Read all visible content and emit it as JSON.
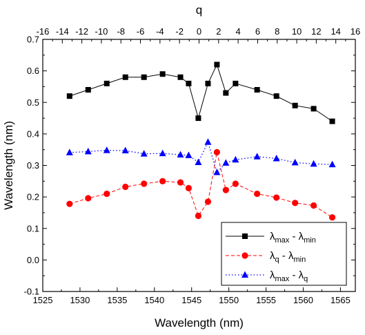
{
  "chart_data": {
    "type": "line",
    "xlabel": "Wavelength (nm)",
    "ylabel": "Wavelength (nm)",
    "x2label": "q",
    "xlim": [
      1525,
      1567
    ],
    "ylim": [
      -0.1,
      0.7
    ],
    "x2lim": [
      -16,
      16
    ],
    "xticks": [
      1525,
      1530,
      1535,
      1540,
      1545,
      1550,
      1555,
      1560,
      1565
    ],
    "yticks": [
      -0.1,
      0.0,
      0.1,
      0.2,
      0.3,
      0.4,
      0.5,
      0.6,
      0.7
    ],
    "x2ticks": [
      -16,
      -14,
      -12,
      -10,
      -8,
      -6,
      -4,
      -2,
      0,
      2,
      4,
      6,
      8,
      10,
      12,
      14,
      16
    ],
    "ytick_labels": [
      "-0.1",
      "0.0",
      "0.1",
      "0.2",
      "0.3",
      "0.4",
      "0.5",
      "0.6",
      "0.7"
    ],
    "grid": false,
    "legend_position": "bottom-right",
    "series": [
      {
        "name": "λmax - λmin",
        "name_base": "λ",
        "name_sub1": "max",
        "name_mid": " - λ",
        "name_sub2": "min",
        "marker": "square",
        "color": "#000000",
        "line": "solid",
        "points": [
          [
            1528.6,
            0.52
          ],
          [
            1531.1,
            0.54
          ],
          [
            1533.6,
            0.56
          ],
          [
            1536.1,
            0.58
          ],
          [
            1538.6,
            0.58
          ],
          [
            1541.1,
            0.59
          ],
          [
            1543.5,
            0.58
          ],
          [
            1544.6,
            0.56
          ],
          [
            1545.9,
            0.45
          ],
          [
            1547.2,
            0.56
          ],
          [
            1548.4,
            0.62
          ],
          [
            1549.6,
            0.53
          ],
          [
            1550.9,
            0.56
          ],
          [
            1553.8,
            0.54
          ],
          [
            1556.4,
            0.52
          ],
          [
            1558.9,
            0.49
          ],
          [
            1561.4,
            0.48
          ],
          [
            1563.9,
            0.44
          ]
        ]
      },
      {
        "name": "λq - λmin",
        "name_base": "λ",
        "name_sub1": "q",
        "name_mid": " - λ",
        "name_sub2": "min",
        "marker": "circle",
        "color": "#ff0000",
        "line": "dashed",
        "points": [
          [
            1528.6,
            0.178
          ],
          [
            1531.1,
            0.196
          ],
          [
            1533.6,
            0.21
          ],
          [
            1536.1,
            0.232
          ],
          [
            1538.6,
            0.242
          ],
          [
            1541.1,
            0.25
          ],
          [
            1543.5,
            0.246
          ],
          [
            1544.6,
            0.228
          ],
          [
            1545.9,
            0.14
          ],
          [
            1547.2,
            0.185
          ],
          [
            1548.4,
            0.342
          ],
          [
            1549.6,
            0.222
          ],
          [
            1550.9,
            0.242
          ],
          [
            1553.8,
            0.21
          ],
          [
            1556.4,
            0.198
          ],
          [
            1558.9,
            0.181
          ],
          [
            1561.4,
            0.173
          ],
          [
            1563.9,
            0.135
          ]
        ]
      },
      {
        "name": "λmax - λq",
        "name_base": "λ",
        "name_sub1": "max",
        "name_mid": " - λ",
        "name_sub2": "q",
        "marker": "triangle",
        "color": "#0000ff",
        "line": "dotted",
        "points": [
          [
            1528.6,
            0.341
          ],
          [
            1531.1,
            0.344
          ],
          [
            1533.6,
            0.348
          ],
          [
            1536.1,
            0.347
          ],
          [
            1538.6,
            0.337
          ],
          [
            1541.1,
            0.338
          ],
          [
            1543.5,
            0.334
          ],
          [
            1544.6,
            0.332
          ],
          [
            1545.9,
            0.31
          ],
          [
            1547.2,
            0.374
          ],
          [
            1548.4,
            0.278
          ],
          [
            1549.6,
            0.308
          ],
          [
            1550.9,
            0.318
          ],
          [
            1553.8,
            0.328
          ],
          [
            1556.4,
            0.322
          ],
          [
            1558.9,
            0.309
          ],
          [
            1561.4,
            0.305
          ],
          [
            1563.9,
            0.303
          ]
        ]
      }
    ]
  }
}
